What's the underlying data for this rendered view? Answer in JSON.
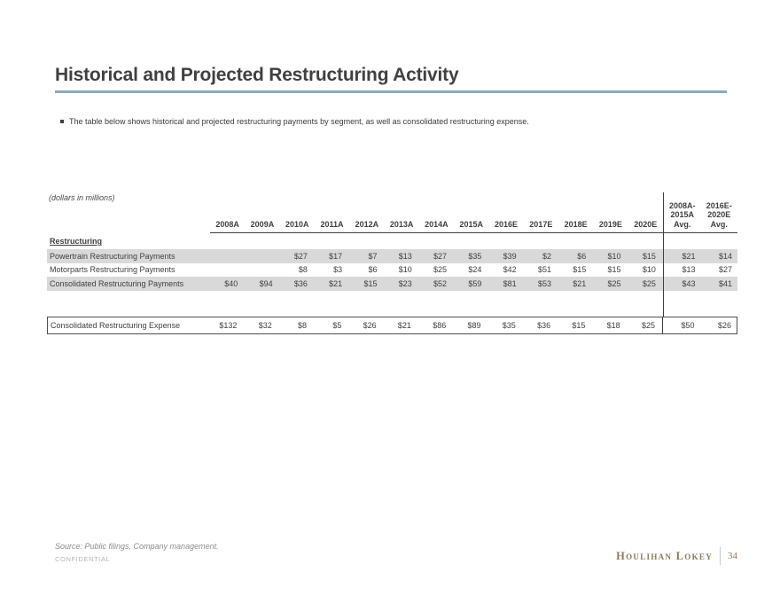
{
  "slide": {
    "title": "Historical and Projected Restructuring Activity",
    "bullet": "The table below shows historical and projected restructuring payments by segment, as well as consolidated restructuring expense.",
    "units_note": "(dollars in millions)"
  },
  "chart_data": {
    "type": "table",
    "units": "dollars in millions",
    "section_label": "Restructuring",
    "columns": [
      "2008A",
      "2009A",
      "2010A",
      "2011A",
      "2012A",
      "2013A",
      "2014A",
      "2015A",
      "2016E",
      "2017E",
      "2018E",
      "2019E",
      "2020E"
    ],
    "avg_columns": [
      {
        "lines": [
          "2008A-",
          "2015A",
          "Avg."
        ]
      },
      {
        "lines": [
          "2016E-",
          "2020E",
          "Avg."
        ]
      }
    ],
    "rows": [
      {
        "label": "Powertrain Restructuring Payments",
        "shaded": true,
        "values": [
          "",
          "",
          "$27",
          "$17",
          "$7",
          "$13",
          "$27",
          "$35",
          "$39",
          "$2",
          "$6",
          "$10",
          "$15"
        ],
        "avg": [
          "$21",
          "$14"
        ]
      },
      {
        "label": "Motorparts Restructuring Payments",
        "shaded": false,
        "values": [
          "",
          "",
          "$8",
          "$3",
          "$6",
          "$10",
          "$25",
          "$24",
          "$42",
          "$51",
          "$15",
          "$15",
          "$10"
        ],
        "avg": [
          "$13",
          "$27"
        ]
      },
      {
        "label": "Consolidated Restructuring Payments",
        "shaded": true,
        "values": [
          "$40",
          "$94",
          "$36",
          "$21",
          "$15",
          "$23",
          "$52",
          "$59",
          "$81",
          "$53",
          "$21",
          "$25",
          "$25"
        ],
        "avg": [
          "$43",
          "$41"
        ]
      }
    ],
    "total_row": {
      "label": "Consolidated Restructuring Expense",
      "values": [
        "$132",
        "$32",
        "$8",
        "$5",
        "$26",
        "$21",
        "$86",
        "$89",
        "$35",
        "$36",
        "$15",
        "$18",
        "$25"
      ],
      "avg": [
        "$50",
        "$26"
      ]
    }
  },
  "footer": {
    "source": "Source: Public filings, Company management.",
    "confidential": "CONFIDENTIAL",
    "brand": "Houlihan Lokey",
    "page_number": "34"
  },
  "colors": {
    "title_text": "#404040",
    "accent_rule": "#8ca9bc",
    "table_text": "#3f3f3f",
    "row_shade": "#d9d9d9",
    "box_border": "#4f4f4f",
    "source_text": "#8c8c8c",
    "confidential_text": "#b4b4b4",
    "brand_gold": "#8b7b5a"
  }
}
